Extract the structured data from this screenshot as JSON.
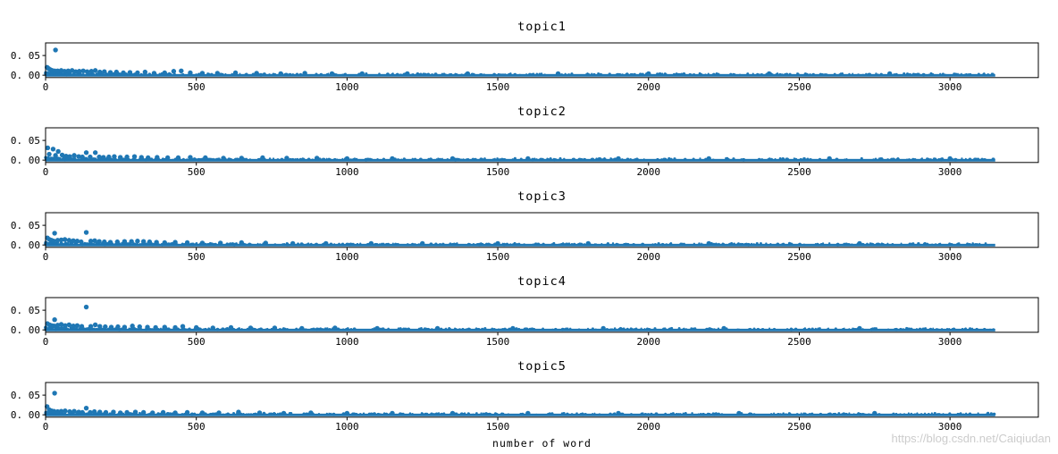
{
  "figure": {
    "xlabel": "number of word",
    "watermark": "https://blog.csdn.net/Caiqiudan",
    "watermark_color": "#cccccc",
    "dot_color": "#1f77b4",
    "axis_color": "#000000",
    "background_color": "#ffffff"
  },
  "chart_data": [
    {
      "type": "scatter",
      "title": "topic1",
      "xlabel": "",
      "ylabel": "",
      "x_ticks": [
        0,
        500,
        1000,
        1500,
        2000,
        2500,
        3000
      ],
      "x_tick_labels": [
        "0",
        "500",
        "1000",
        "1500",
        "2000",
        "2500",
        "3000"
      ],
      "y_ticks": [
        0.0,
        0.05
      ],
      "y_tick_labels": [
        "0. 00",
        "0. 05"
      ],
      "xlim": [
        0,
        3293
      ],
      "ylim": [
        -0.006,
        0.082
      ],
      "grid": false,
      "legend": null,
      "dense_band": {
        "x_min": 0,
        "x_max": 3150,
        "y_min": 0,
        "y_max": 0.003
      },
      "points": [
        [
          33,
          0.064
        ],
        [
          5,
          0.02
        ],
        [
          10,
          0.017
        ],
        [
          16,
          0.014
        ],
        [
          22,
          0.012
        ],
        [
          30,
          0.011
        ],
        [
          40,
          0.011
        ],
        [
          52,
          0.012
        ],
        [
          63,
          0.01
        ],
        [
          75,
          0.011
        ],
        [
          88,
          0.012
        ],
        [
          100,
          0.009
        ],
        [
          112,
          0.01
        ],
        [
          125,
          0.011
        ],
        [
          138,
          0.009
        ],
        [
          152,
          0.01
        ],
        [
          165,
          0.012
        ],
        [
          180,
          0.008
        ],
        [
          195,
          0.009
        ],
        [
          215,
          0.007
        ],
        [
          235,
          0.008
        ],
        [
          258,
          0.006
        ],
        [
          280,
          0.007
        ],
        [
          305,
          0.006
        ],
        [
          330,
          0.008
        ],
        [
          360,
          0.005
        ],
        [
          395,
          0.006
        ],
        [
          425,
          0.01
        ],
        [
          450,
          0.011
        ],
        [
          480,
          0.006
        ],
        [
          520,
          0.005
        ],
        [
          570,
          0.005
        ],
        [
          630,
          0.006
        ],
        [
          700,
          0.005
        ],
        [
          780,
          0.004
        ],
        [
          860,
          0.005
        ],
        [
          950,
          0.004
        ],
        [
          1050,
          0.004
        ],
        [
          1200,
          0.004
        ],
        [
          1400,
          0.004
        ],
        [
          1700,
          0.004
        ],
        [
          2000,
          0.004
        ],
        [
          2400,
          0.004
        ],
        [
          2800,
          0.004
        ]
      ]
    },
    {
      "type": "scatter",
      "title": "topic2",
      "xlabel": "",
      "ylabel": "",
      "x_ticks": [
        0,
        500,
        1000,
        1500,
        2000,
        2500,
        3000
      ],
      "x_tick_labels": [
        "0",
        "500",
        "1000",
        "1500",
        "2000",
        "2500",
        "3000"
      ],
      "y_ticks": [
        0.0,
        0.05
      ],
      "y_tick_labels": [
        "0. 00",
        "0. 05"
      ],
      "xlim": [
        0,
        3293
      ],
      "ylim": [
        -0.006,
        0.082
      ],
      "grid": false,
      "legend": null,
      "dense_band": {
        "x_min": 0,
        "x_max": 3150,
        "y_min": 0,
        "y_max": 0.003
      },
      "points": [
        [
          7,
          0.031
        ],
        [
          25,
          0.028
        ],
        [
          42,
          0.022
        ],
        [
          12,
          0.015
        ],
        [
          33,
          0.012
        ],
        [
          55,
          0.013
        ],
        [
          68,
          0.01
        ],
        [
          80,
          0.009
        ],
        [
          95,
          0.012
        ],
        [
          110,
          0.009
        ],
        [
          122,
          0.008
        ],
        [
          135,
          0.019
        ],
        [
          148,
          0.008
        ],
        [
          165,
          0.019
        ],
        [
          178,
          0.008
        ],
        [
          192,
          0.007
        ],
        [
          210,
          0.008
        ],
        [
          228,
          0.009
        ],
        [
          248,
          0.007
        ],
        [
          270,
          0.008
        ],
        [
          295,
          0.009
        ],
        [
          318,
          0.007
        ],
        [
          340,
          0.006
        ],
        [
          370,
          0.007
        ],
        [
          405,
          0.006
        ],
        [
          440,
          0.006
        ],
        [
          480,
          0.007
        ],
        [
          530,
          0.006
        ],
        [
          590,
          0.005
        ],
        [
          650,
          0.005
        ],
        [
          720,
          0.006
        ],
        [
          800,
          0.005
        ],
        [
          900,
          0.005
        ],
        [
          1000,
          0.004
        ],
        [
          1150,
          0.004
        ],
        [
          1350,
          0.004
        ],
        [
          1600,
          0.004
        ],
        [
          1900,
          0.004
        ],
        [
          2200,
          0.004
        ],
        [
          2600,
          0.004
        ],
        [
          3000,
          0.004
        ]
      ]
    },
    {
      "type": "scatter",
      "title": "topic3",
      "xlabel": "",
      "ylabel": "",
      "x_ticks": [
        0,
        500,
        1000,
        1500,
        2000,
        2500,
        3000
      ],
      "x_tick_labels": [
        "0",
        "500",
        "1000",
        "1500",
        "2000",
        "2500",
        "3000"
      ],
      "y_ticks": [
        0.0,
        0.05
      ],
      "y_tick_labels": [
        "0. 00",
        "0. 05"
      ],
      "xlim": [
        0,
        3293
      ],
      "ylim": [
        -0.006,
        0.082
      ],
      "grid": false,
      "legend": null,
      "dense_band": {
        "x_min": 0,
        "x_max": 3150,
        "y_min": 0,
        "y_max": 0.003
      },
      "points": [
        [
          30,
          0.03
        ],
        [
          135,
          0.032
        ],
        [
          6,
          0.018
        ],
        [
          13,
          0.014
        ],
        [
          20,
          0.012
        ],
        [
          27,
          0.01
        ],
        [
          40,
          0.012
        ],
        [
          52,
          0.013
        ],
        [
          64,
          0.014
        ],
        [
          78,
          0.012
        ],
        [
          92,
          0.011
        ],
        [
          105,
          0.01
        ],
        [
          118,
          0.008
        ],
        [
          150,
          0.01
        ],
        [
          163,
          0.011
        ],
        [
          178,
          0.009
        ],
        [
          195,
          0.008
        ],
        [
          215,
          0.007
        ],
        [
          238,
          0.008
        ],
        [
          262,
          0.009
        ],
        [
          285,
          0.009
        ],
        [
          305,
          0.01
        ],
        [
          325,
          0.009
        ],
        [
          345,
          0.008
        ],
        [
          368,
          0.007
        ],
        [
          395,
          0.006
        ],
        [
          430,
          0.007
        ],
        [
          470,
          0.006
        ],
        [
          520,
          0.005
        ],
        [
          580,
          0.005
        ],
        [
          650,
          0.006
        ],
        [
          730,
          0.005
        ],
        [
          820,
          0.004
        ],
        [
          930,
          0.004
        ],
        [
          1080,
          0.004
        ],
        [
          1250,
          0.004
        ],
        [
          1500,
          0.004
        ],
        [
          1800,
          0.004
        ],
        [
          2200,
          0.004
        ],
        [
          2700,
          0.004
        ]
      ]
    },
    {
      "type": "scatter",
      "title": "topic4",
      "xlabel": "",
      "ylabel": "",
      "x_ticks": [
        0,
        500,
        1000,
        1500,
        2000,
        2500,
        3000
      ],
      "x_tick_labels": [
        "0",
        "500",
        "1000",
        "1500",
        "2000",
        "2500",
        "3000"
      ],
      "y_ticks": [
        0.0,
        0.05
      ],
      "y_tick_labels": [
        "0. 00",
        "0. 05"
      ],
      "xlim": [
        0,
        3293
      ],
      "ylim": [
        -0.006,
        0.082
      ],
      "grid": false,
      "legend": null,
      "dense_band": {
        "x_min": 0,
        "x_max": 3150,
        "y_min": 0,
        "y_max": 0.003
      },
      "points": [
        [
          30,
          0.026
        ],
        [
          135,
          0.058
        ],
        [
          6,
          0.016
        ],
        [
          13,
          0.013
        ],
        [
          20,
          0.011
        ],
        [
          28,
          0.01
        ],
        [
          40,
          0.012
        ],
        [
          52,
          0.014
        ],
        [
          65,
          0.011
        ],
        [
          78,
          0.013
        ],
        [
          92,
          0.01
        ],
        [
          105,
          0.011
        ],
        [
          120,
          0.009
        ],
        [
          150,
          0.009
        ],
        [
          165,
          0.013
        ],
        [
          180,
          0.009
        ],
        [
          198,
          0.008
        ],
        [
          218,
          0.007
        ],
        [
          240,
          0.008
        ],
        [
          262,
          0.007
        ],
        [
          288,
          0.01
        ],
        [
          312,
          0.008
        ],
        [
          338,
          0.007
        ],
        [
          365,
          0.006
        ],
        [
          395,
          0.007
        ],
        [
          430,
          0.006
        ],
        [
          455,
          0.009
        ],
        [
          500,
          0.006
        ],
        [
          555,
          0.005
        ],
        [
          615,
          0.006
        ],
        [
          680,
          0.005
        ],
        [
          760,
          0.005
        ],
        [
          850,
          0.004
        ],
        [
          960,
          0.005
        ],
        [
          1100,
          0.004
        ],
        [
          1300,
          0.004
        ],
        [
          1550,
          0.004
        ],
        [
          1850,
          0.004
        ],
        [
          2250,
          0.004
        ],
        [
          2700,
          0.004
        ]
      ]
    },
    {
      "type": "scatter",
      "title": "topic5",
      "xlabel": "number of word",
      "ylabel": "",
      "x_ticks": [
        0,
        500,
        1000,
        1500,
        2000,
        2500,
        3000
      ],
      "x_tick_labels": [
        "0",
        "500",
        "1000",
        "1500",
        "2000",
        "2500",
        "3000"
      ],
      "y_ticks": [
        0.0,
        0.05
      ],
      "y_tick_labels": [
        "0. 00",
        "0. 05"
      ],
      "xlim": [
        0,
        3293
      ],
      "ylim": [
        -0.006,
        0.082
      ],
      "grid": false,
      "legend": null,
      "dense_band": {
        "x_min": 0,
        "x_max": 3150,
        "y_min": 0,
        "y_max": 0.003
      },
      "points": [
        [
          30,
          0.055
        ],
        [
          5,
          0.021
        ],
        [
          12,
          0.013
        ],
        [
          20,
          0.01
        ],
        [
          28,
          0.009
        ],
        [
          40,
          0.008
        ],
        [
          52,
          0.009
        ],
        [
          65,
          0.01
        ],
        [
          80,
          0.008
        ],
        [
          95,
          0.009
        ],
        [
          110,
          0.007
        ],
        [
          122,
          0.006
        ],
        [
          135,
          0.017
        ],
        [
          148,
          0.006
        ],
        [
          162,
          0.008
        ],
        [
          180,
          0.007
        ],
        [
          200,
          0.006
        ],
        [
          225,
          0.007
        ],
        [
          248,
          0.005
        ],
        [
          270,
          0.006
        ],
        [
          298,
          0.007
        ],
        [
          325,
          0.006
        ],
        [
          355,
          0.005
        ],
        [
          390,
          0.006
        ],
        [
          430,
          0.005
        ],
        [
          470,
          0.006
        ],
        [
          520,
          0.005
        ],
        [
          575,
          0.005
        ],
        [
          640,
          0.007
        ],
        [
          710,
          0.005
        ],
        [
          790,
          0.004
        ],
        [
          880,
          0.005
        ],
        [
          1000,
          0.004
        ],
        [
          1150,
          0.004
        ],
        [
          1350,
          0.004
        ],
        [
          1600,
          0.004
        ],
        [
          1900,
          0.004
        ],
        [
          2300,
          0.004
        ],
        [
          2750,
          0.004
        ]
      ]
    }
  ]
}
